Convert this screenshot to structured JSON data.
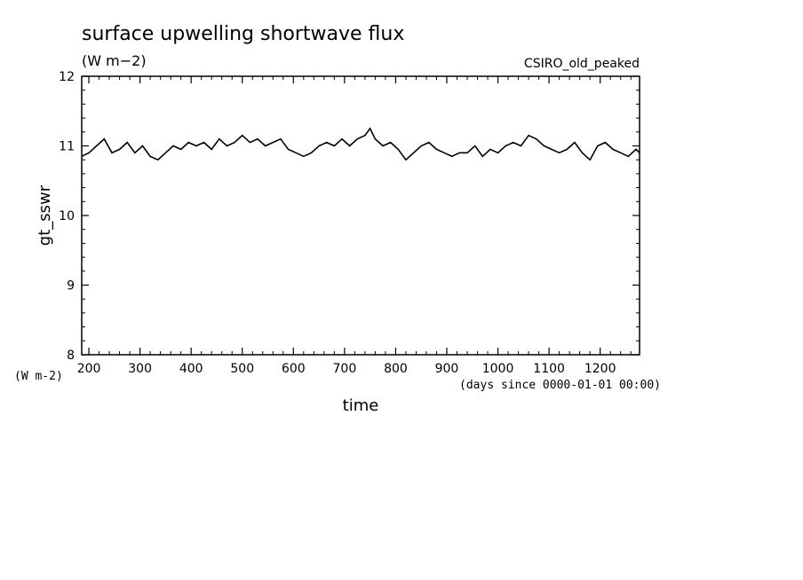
{
  "chart_data": {
    "type": "line",
    "title": "surface upwelling shortwave flux",
    "units": "(W m−2)",
    "source_label": "CSIRO_old_peaked",
    "ylabel": "gt_sswr",
    "y_units_label": "(W m-2)",
    "xlabel": "time",
    "x_units_label": "(days since 0000-01-01 00:00)",
    "xlim": [
      186,
      1277
    ],
    "ylim": [
      8,
      12
    ],
    "x_ticks": [
      200,
      300,
      400,
      500,
      600,
      700,
      800,
      900,
      1000,
      1100,
      1200
    ],
    "y_ticks": [
      8,
      9,
      10,
      11,
      12
    ],
    "grid": false,
    "series": [
      {
        "x": [
          186,
          200,
          215,
          230,
          245,
          260,
          275,
          290,
          305,
          320,
          335,
          350,
          365,
          380,
          395,
          410,
          425,
          440,
          455,
          470,
          485,
          500,
          515,
          530,
          545,
          560,
          575,
          590,
          605,
          620,
          635,
          650,
          665,
          680,
          695,
          710,
          725,
          740,
          750,
          760,
          775,
          790,
          805,
          820,
          835,
          850,
          865,
          880,
          895,
          910,
          925,
          940,
          955,
          970,
          985,
          1000,
          1015,
          1030,
          1045,
          1060,
          1075,
          1090,
          1105,
          1120,
          1135,
          1150,
          1165,
          1180,
          1195,
          1210,
          1225,
          1240,
          1255,
          1270,
          1277
        ],
        "y": [
          10.85,
          10.9,
          11.0,
          11.1,
          10.9,
          10.95,
          11.05,
          10.9,
          11.0,
          10.85,
          10.8,
          10.9,
          11.0,
          10.95,
          11.05,
          11.0,
          11.05,
          10.95,
          11.1,
          11.0,
          11.05,
          11.15,
          11.05,
          11.1,
          11.0,
          11.05,
          11.1,
          10.95,
          10.9,
          10.85,
          10.9,
          11.0,
          11.05,
          11.0,
          11.1,
          11.0,
          11.1,
          11.15,
          11.25,
          11.1,
          11.0,
          11.05,
          10.95,
          10.8,
          10.9,
          11.0,
          11.05,
          10.95,
          10.9,
          10.85,
          10.9,
          10.9,
          11.0,
          10.85,
          10.95,
          10.9,
          11.0,
          11.05,
          11.0,
          11.15,
          11.1,
          11.0,
          10.95,
          10.9,
          10.95,
          11.05,
          10.9,
          10.8,
          11.0,
          11.05,
          10.95,
          10.9,
          10.85,
          10.95,
          10.9
        ]
      }
    ]
  }
}
